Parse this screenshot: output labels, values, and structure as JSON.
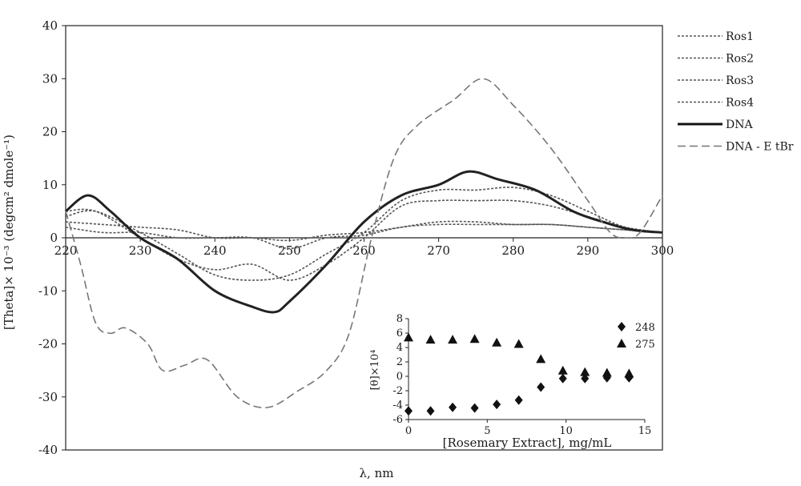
{
  "chart_data": [
    {
      "type": "line",
      "title": "",
      "xlabel": "λ, nm",
      "ylabel": "[Theta]× 10⁻³ (degcm² dmole⁻¹)",
      "xlim": [
        220,
        300
      ],
      "ylim": [
        -40,
        40
      ],
      "xticks": [
        220,
        230,
        240,
        250,
        260,
        270,
        280,
        290,
        300
      ],
      "yticks": [
        40,
        30,
        20,
        10,
        0,
        -10,
        -20,
        -30,
        -40
      ],
      "legend_position": "right",
      "grid": false,
      "series": [
        {
          "name": "Ros1",
          "color": "#555555",
          "style": "dotted",
          "x": [
            220,
            225,
            230,
            235,
            240,
            245,
            250,
            255,
            260,
            265,
            270,
            275,
            280,
            285,
            290,
            295,
            300
          ],
          "y": [
            3,
            2.5,
            2,
            1.5,
            0,
            0,
            -0.5,
            0.5,
            1,
            2,
            3,
            3,
            2.5,
            2.5,
            2,
            1.5,
            1
          ]
        },
        {
          "name": "Ros2",
          "color": "#555555",
          "style": "dotted",
          "x": [
            220,
            224,
            230,
            235,
            240,
            245,
            250,
            255,
            260,
            265,
            270,
            275,
            280,
            285,
            290,
            295,
            300
          ],
          "y": [
            5,
            5,
            0,
            -4,
            -6,
            -5,
            -8,
            -5,
            0,
            6,
            7,
            7,
            7,
            6,
            4,
            2,
            1
          ]
        },
        {
          "name": "Ros3",
          "color": "#555555",
          "style": "dotted",
          "x": [
            220,
            224,
            230,
            235,
            240,
            245,
            250,
            255,
            260,
            265,
            270,
            275,
            280,
            285,
            290,
            295,
            300
          ],
          "y": [
            4,
            5,
            1,
            -3,
            -7,
            -8,
            -7,
            -3,
            1,
            7,
            9,
            9,
            9.5,
            8,
            5,
            2,
            1
          ]
        },
        {
          "name": "Ros4",
          "color": "#555555",
          "style": "dotted",
          "x": [
            220,
            225,
            230,
            235,
            240,
            245,
            250,
            255,
            260,
            265,
            270,
            275,
            280,
            285,
            290,
            295,
            300
          ],
          "y": [
            2,
            1,
            1,
            0,
            0,
            0,
            -2,
            0,
            0.5,
            2,
            2.5,
            2.5,
            2.5,
            2.5,
            2,
            1.5,
            1
          ]
        },
        {
          "name": "DNA",
          "color": "#222222",
          "style": "solid",
          "x": [
            220,
            223,
            226,
            230,
            235,
            240,
            245,
            248,
            250,
            255,
            260,
            265,
            270,
            274,
            278,
            283,
            288,
            292,
            296,
            300
          ],
          "y": [
            5,
            8,
            5,
            0,
            -4,
            -10,
            -13,
            -14,
            -12,
            -5,
            3,
            8,
            10,
            12.5,
            11,
            9,
            5,
            3,
            1.5,
            1
          ]
        },
        {
          "name": "DNA - E tBr",
          "color": "#777777",
          "style": "dashed",
          "x": [
            220,
            222,
            224,
            226,
            228,
            231,
            233,
            236,
            239,
            243,
            247,
            251,
            255,
            258,
            261,
            264,
            267,
            272,
            276,
            280,
            285,
            290,
            293,
            295,
            297,
            300
          ],
          "y": [
            5,
            -5,
            -16,
            -18,
            -17,
            -20,
            -25,
            -24,
            -23,
            -30,
            -32,
            -29,
            -25,
            -18,
            0,
            15,
            21,
            26,
            30,
            25,
            17,
            7,
            1,
            0,
            1,
            8
          ]
        }
      ]
    },
    {
      "type": "scatter",
      "title": "",
      "xlabel": "[Rosemary Extract], mg/mL",
      "ylabel": "[θ]×10⁴",
      "xlim": [
        0,
        15
      ],
      "ylim": [
        -6,
        8
      ],
      "xticks": [
        0,
        5,
        10,
        15
      ],
      "yticks": [
        8,
        6,
        4,
        2,
        0,
        -2,
        -4,
        -6
      ],
      "legend_position": "top-right",
      "series": [
        {
          "name": "248",
          "marker": "diamond",
          "color": "#111111",
          "x": [
            0,
            1.4,
            2.8,
            4.2,
            5.6,
            7,
            8.4,
            9.8,
            11.2,
            12.6,
            14
          ],
          "y": [
            -4.8,
            -4.8,
            -4.3,
            -4.4,
            -3.9,
            -3.3,
            -1.5,
            -0.3,
            -0.3,
            -0.2,
            -0.2
          ]
        },
        {
          "name": "275",
          "marker": "triangle",
          "color": "#111111",
          "x": [
            0,
            1.4,
            2.8,
            4.2,
            5.6,
            7,
            8.4,
            9.8,
            11.2,
            12.6,
            14
          ],
          "y": [
            5.4,
            5.1,
            5.1,
            5.2,
            4.7,
            4.5,
            2.4,
            0.8,
            0.6,
            0.5,
            0.4
          ]
        }
      ]
    }
  ]
}
